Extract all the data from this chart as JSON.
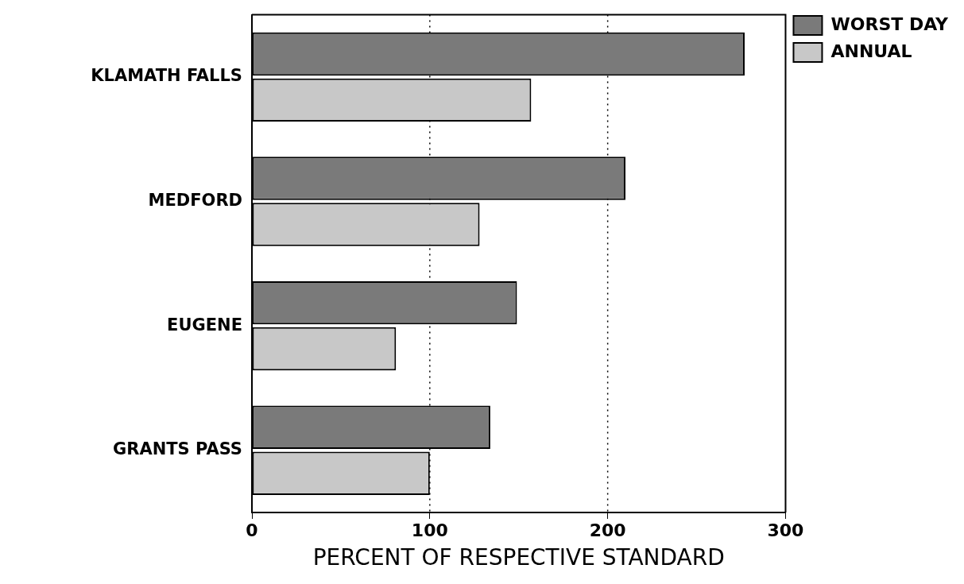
{
  "chart_data": {
    "type": "bar",
    "orientation": "horizontal",
    "xlabel": "PERCENT OF RESPECTIVE STANDARD",
    "categories": [
      "KLAMATH FALLS",
      "MEDFORD",
      "EUGENE",
      "GRANTS PASS"
    ],
    "series": [
      {
        "name": "WORST DAY",
        "color": "#7a7a7a",
        "values": [
          277,
          210,
          149,
          134
        ]
      },
      {
        "name": "ANNUAL",
        "color": "#c8c8c8",
        "values": [
          157,
          128,
          81,
          100
        ]
      }
    ],
    "xlim": [
      0,
      300
    ],
    "xticks": [
      0,
      100,
      200,
      300
    ],
    "grid": "x",
    "legend": "top right"
  }
}
